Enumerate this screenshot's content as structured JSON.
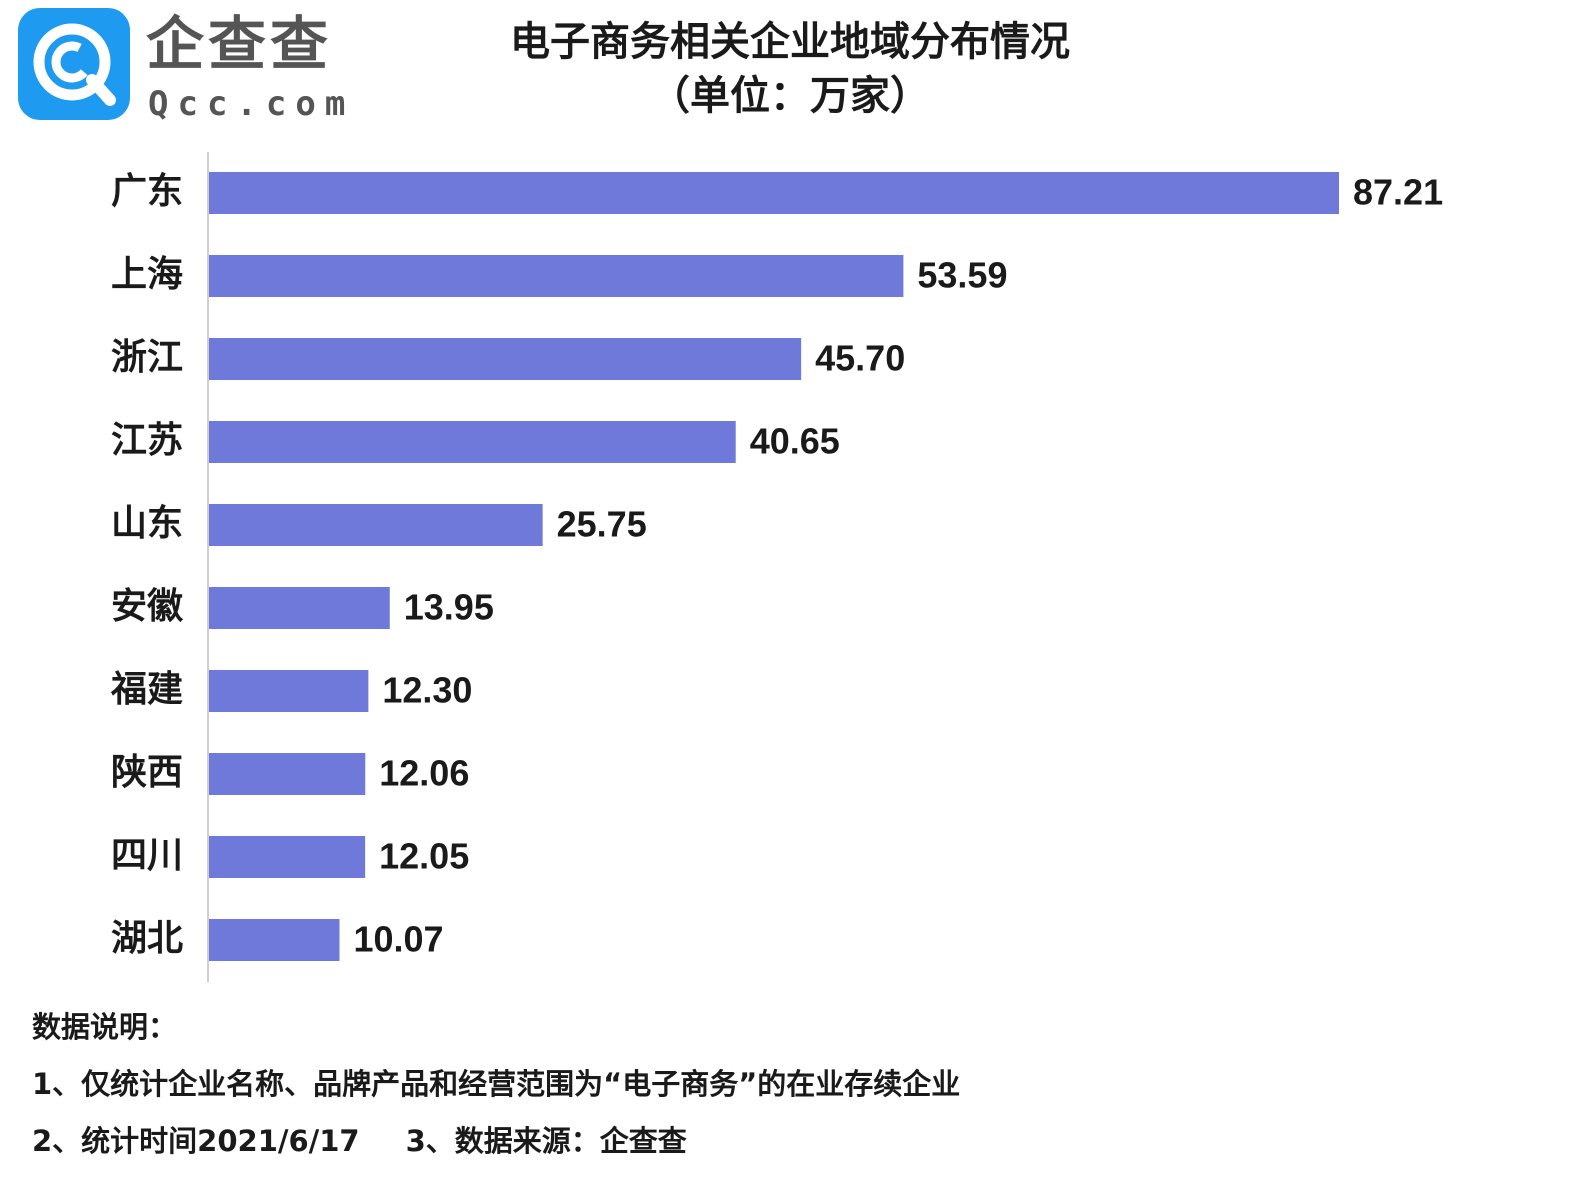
{
  "logo": {
    "name": "企查查",
    "domain": "Qcc.com",
    "badge_color": "#1e9bf0"
  },
  "chart_data": {
    "type": "bar",
    "orientation": "horizontal",
    "title": "电子商务相关企业地域分布情况",
    "subtitle": "（单位：万家）",
    "categories": [
      "广东",
      "上海",
      "浙江",
      "江苏",
      "山东",
      "安徽",
      "福建",
      "陕西",
      "四川",
      "湖北"
    ],
    "values": [
      87.21,
      53.59,
      45.7,
      40.65,
      25.75,
      13.95,
      12.3,
      12.06,
      12.05,
      10.07
    ],
    "value_labels": [
      "87.21",
      "53.59",
      "45.70",
      "40.65",
      "25.75",
      "13.95",
      "12.30",
      "12.06",
      "12.05",
      "10.07"
    ],
    "bar_color": "#6f79d9",
    "xlim": [
      0,
      87.21
    ],
    "grid": false,
    "legend": "none"
  },
  "notes": {
    "heading": "数据说明：",
    "line1": "1、仅统计企业名称、品牌产品和经营范围为“电子商务”的在业存续企业",
    "line2a": "2、统计时间2021/6/17",
    "line2b": "3、数据来源：企查查"
  }
}
